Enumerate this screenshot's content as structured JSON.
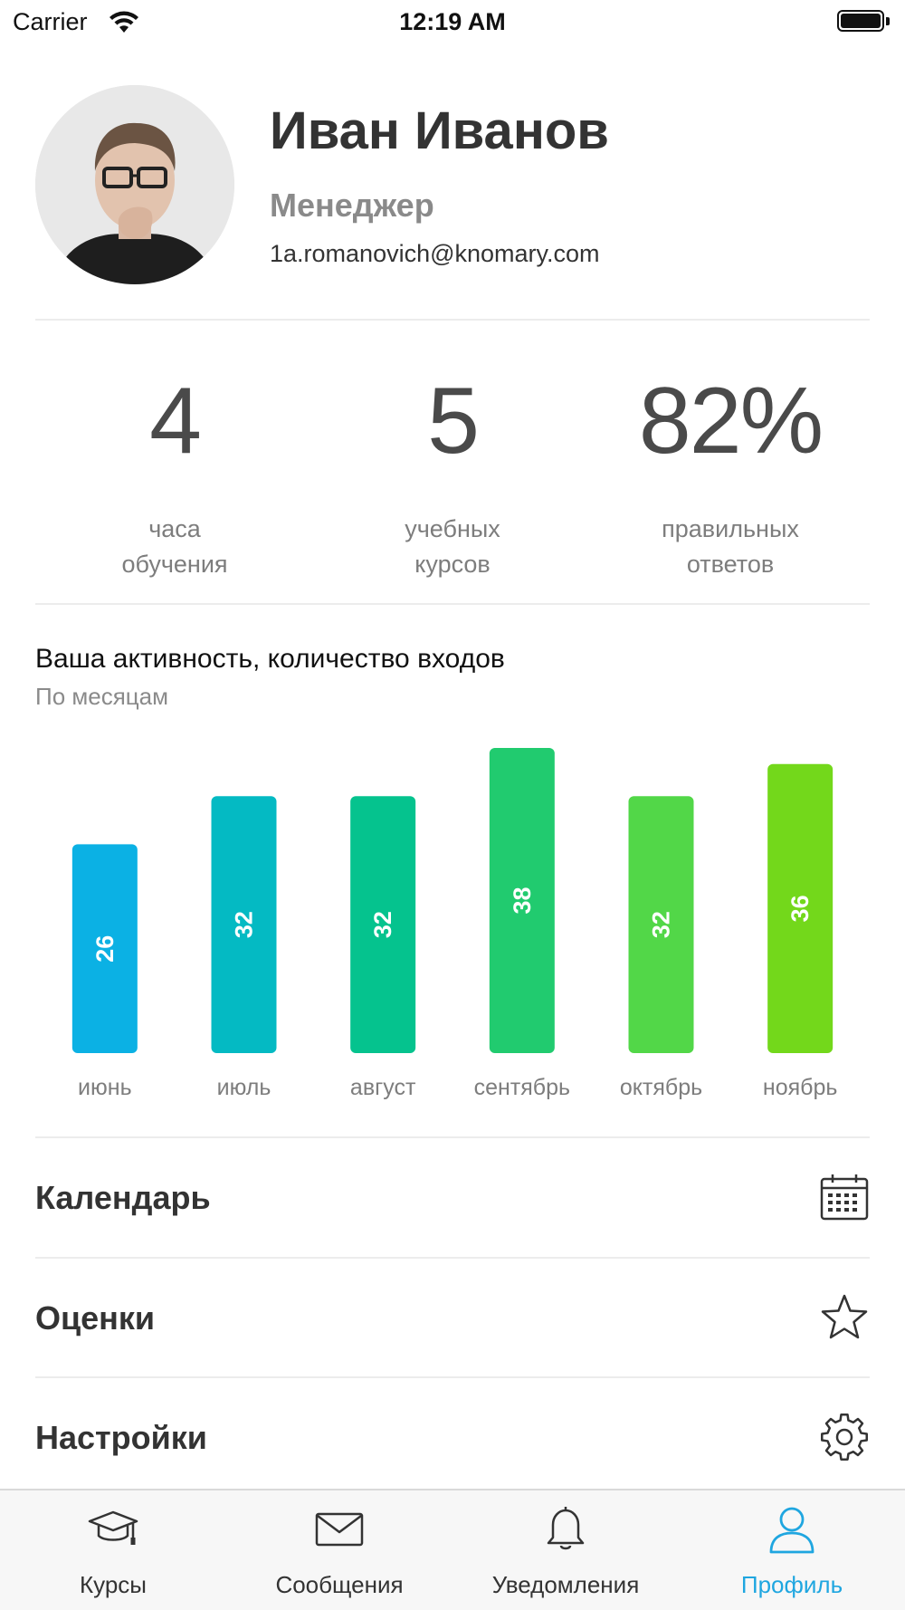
{
  "status_bar": {
    "carrier": "Carrier",
    "time": "12:19 AM"
  },
  "profile": {
    "name": "Иван Иванов",
    "role": "Менеджер",
    "email": "1a.romanovich@knomary.com"
  },
  "stats": [
    {
      "value": "4",
      "label_line1": "часа",
      "label_line2": "обучения"
    },
    {
      "value": "5",
      "label_line1": "учебных",
      "label_line2": "курсов"
    },
    {
      "value": "82%",
      "label_line1": "правильных",
      "label_line2": "ответов"
    }
  ],
  "activity": {
    "title": "Ваша активность, количество входов",
    "subtitle": "По месяцам"
  },
  "chart_data": {
    "type": "bar",
    "categories": [
      "июнь",
      "июль",
      "август",
      "сентябрь",
      "октябрь",
      "ноябрь"
    ],
    "values": [
      26,
      32,
      32,
      38,
      32,
      36
    ],
    "colors": [
      "#0bb1e4",
      "#04bac3",
      "#05c38e",
      "#21cb6f",
      "#52d748",
      "#73d81b"
    ],
    "data_labels": "inside-bar-rotated",
    "grid": false,
    "legend": false
  },
  "menu": [
    {
      "label": "Календарь",
      "icon": "calendar-icon"
    },
    {
      "label": "Оценки",
      "icon": "star-icon"
    },
    {
      "label": "Настройки",
      "icon": "gear-icon"
    }
  ],
  "tabs": [
    {
      "label": "Курсы",
      "icon": "graduation-cap-icon",
      "active": false
    },
    {
      "label": "Сообщения",
      "icon": "envelope-icon",
      "active": false
    },
    {
      "label": "Уведомления",
      "icon": "bell-icon",
      "active": false
    },
    {
      "label": "Профиль",
      "icon": "user-icon",
      "active": true
    }
  ],
  "colors": {
    "accent": "#1fa6e0",
    "text": "#333333",
    "muted": "#8a8a8a"
  }
}
